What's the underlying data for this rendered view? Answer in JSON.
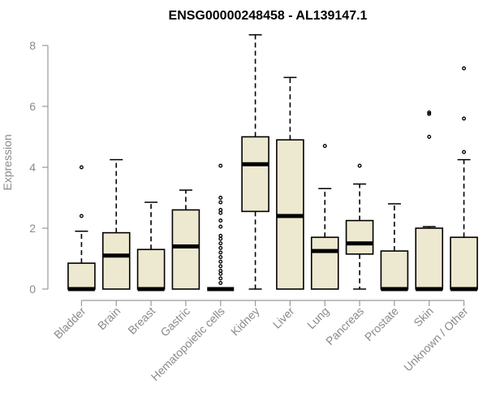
{
  "chart_data": {
    "type": "box",
    "title": "ENSG00000248458 - AL139147.1",
    "xlabel": "",
    "ylabel": "Expression",
    "ylim": [
      0,
      8.4
    ],
    "yticks": [
      0,
      2,
      4,
      6,
      8
    ],
    "colors": {
      "box_fill": "#ede8d0",
      "box_stroke": "#000000",
      "median": "#000000",
      "whisker": "#000000",
      "axis": "#9a9a9a",
      "text": "#8a8a8a",
      "title": "#000000"
    },
    "categories": [
      "Bladder",
      "Brain",
      "Breast",
      "Gastric",
      "Hematopoietic cells",
      "Kidney",
      "Liver",
      "Lung",
      "Pancreas",
      "Prostate",
      "Skin",
      "Unknown / Other"
    ],
    "boxes": [
      {
        "min": 0,
        "q1": 0,
        "median": 0,
        "q3": 0.85,
        "max": 1.9,
        "outliers": [
          2.4,
          4.0
        ]
      },
      {
        "min": 0,
        "q1": 0,
        "median": 1.1,
        "q3": 1.85,
        "max": 4.25,
        "outliers": []
      },
      {
        "min": 0,
        "q1": 0,
        "median": 0,
        "q3": 1.3,
        "max": 2.85,
        "outliers": []
      },
      {
        "min": 0,
        "q1": 0,
        "median": 1.4,
        "q3": 2.6,
        "max": 3.25,
        "outliers": []
      },
      {
        "min": 0,
        "q1": 0,
        "median": 0,
        "q3": 0,
        "max": 0,
        "outliers": [
          0.2,
          0.35,
          0.5,
          0.6,
          0.75,
          0.9,
          1.05,
          1.2,
          1.35,
          1.5,
          1.65,
          1.75,
          2.05,
          2.25,
          2.5,
          2.6,
          2.85,
          3.0,
          4.05
        ]
      },
      {
        "min": 0,
        "q1": 2.55,
        "median": 4.1,
        "q3": 5.0,
        "max": 8.35,
        "outliers": []
      },
      {
        "min": 0,
        "q1": 0,
        "median": 2.4,
        "q3": 4.9,
        "max": 6.95,
        "outliers": []
      },
      {
        "min": 0,
        "q1": 0,
        "median": 1.25,
        "q3": 1.7,
        "max": 3.3,
        "outliers": [
          4.7
        ]
      },
      {
        "min": 0,
        "q1": 1.15,
        "median": 1.5,
        "q3": 2.25,
        "max": 3.45,
        "outliers": [
          4.05
        ]
      },
      {
        "min": 0,
        "q1": 0,
        "median": 0,
        "q3": 1.25,
        "max": 2.8,
        "outliers": []
      },
      {
        "min": 0,
        "q1": 0,
        "median": 0,
        "q3": 2.0,
        "max": 2.05,
        "outliers": [
          5.0,
          5.75,
          5.8
        ]
      },
      {
        "min": 0,
        "q1": 0,
        "median": 0,
        "q3": 1.7,
        "max": 4.25,
        "outliers": [
          4.5,
          5.6,
          7.25
        ]
      }
    ]
  }
}
